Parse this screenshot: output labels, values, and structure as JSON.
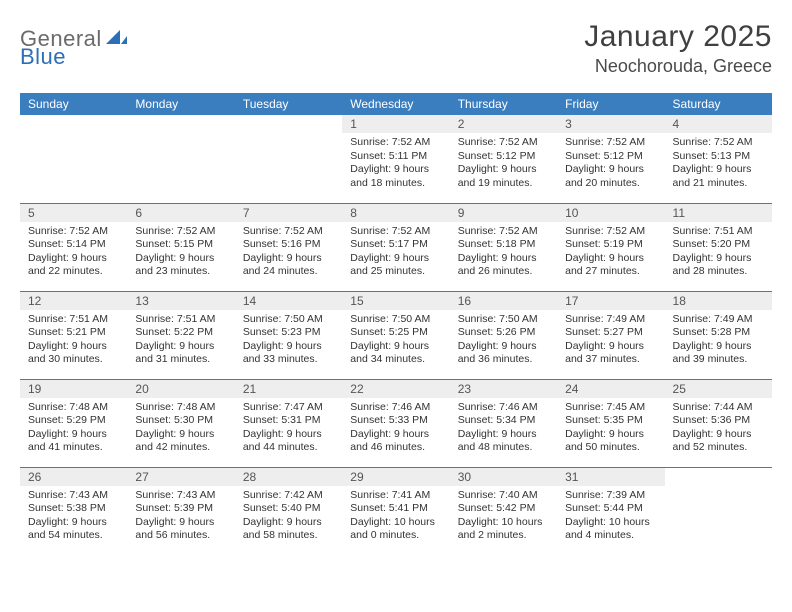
{
  "brand": {
    "part1": "General",
    "part2": "Blue"
  },
  "title": "January 2025",
  "location": "Neochorouda, Greece",
  "colors": {
    "header_bg": "#3a7ebf",
    "header_fg": "#ffffff",
    "daynum_bg": "#eeeeee",
    "rule": "#3a7ebf",
    "brand_gray": "#6a6a6a",
    "brand_blue": "#2d6fb6"
  },
  "day_headers": [
    "Sunday",
    "Monday",
    "Tuesday",
    "Wednesday",
    "Thursday",
    "Friday",
    "Saturday"
  ],
  "weeks": [
    [
      {
        "n": "",
        "sr": "",
        "ss": "",
        "dl": ""
      },
      {
        "n": "",
        "sr": "",
        "ss": "",
        "dl": ""
      },
      {
        "n": "",
        "sr": "",
        "ss": "",
        "dl": ""
      },
      {
        "n": "1",
        "sr": "7:52 AM",
        "ss": "5:11 PM",
        "dl": "9 hours and 18 minutes."
      },
      {
        "n": "2",
        "sr": "7:52 AM",
        "ss": "5:12 PM",
        "dl": "9 hours and 19 minutes."
      },
      {
        "n": "3",
        "sr": "7:52 AM",
        "ss": "5:12 PM",
        "dl": "9 hours and 20 minutes."
      },
      {
        "n": "4",
        "sr": "7:52 AM",
        "ss": "5:13 PM",
        "dl": "9 hours and 21 minutes."
      }
    ],
    [
      {
        "n": "5",
        "sr": "7:52 AM",
        "ss": "5:14 PM",
        "dl": "9 hours and 22 minutes."
      },
      {
        "n": "6",
        "sr": "7:52 AM",
        "ss": "5:15 PM",
        "dl": "9 hours and 23 minutes."
      },
      {
        "n": "7",
        "sr": "7:52 AM",
        "ss": "5:16 PM",
        "dl": "9 hours and 24 minutes."
      },
      {
        "n": "8",
        "sr": "7:52 AM",
        "ss": "5:17 PM",
        "dl": "9 hours and 25 minutes."
      },
      {
        "n": "9",
        "sr": "7:52 AM",
        "ss": "5:18 PM",
        "dl": "9 hours and 26 minutes."
      },
      {
        "n": "10",
        "sr": "7:52 AM",
        "ss": "5:19 PM",
        "dl": "9 hours and 27 minutes."
      },
      {
        "n": "11",
        "sr": "7:51 AM",
        "ss": "5:20 PM",
        "dl": "9 hours and 28 minutes."
      }
    ],
    [
      {
        "n": "12",
        "sr": "7:51 AM",
        "ss": "5:21 PM",
        "dl": "9 hours and 30 minutes."
      },
      {
        "n": "13",
        "sr": "7:51 AM",
        "ss": "5:22 PM",
        "dl": "9 hours and 31 minutes."
      },
      {
        "n": "14",
        "sr": "7:50 AM",
        "ss": "5:23 PM",
        "dl": "9 hours and 33 minutes."
      },
      {
        "n": "15",
        "sr": "7:50 AM",
        "ss": "5:25 PM",
        "dl": "9 hours and 34 minutes."
      },
      {
        "n": "16",
        "sr": "7:50 AM",
        "ss": "5:26 PM",
        "dl": "9 hours and 36 minutes."
      },
      {
        "n": "17",
        "sr": "7:49 AM",
        "ss": "5:27 PM",
        "dl": "9 hours and 37 minutes."
      },
      {
        "n": "18",
        "sr": "7:49 AM",
        "ss": "5:28 PM",
        "dl": "9 hours and 39 minutes."
      }
    ],
    [
      {
        "n": "19",
        "sr": "7:48 AM",
        "ss": "5:29 PM",
        "dl": "9 hours and 41 minutes."
      },
      {
        "n": "20",
        "sr": "7:48 AM",
        "ss": "5:30 PM",
        "dl": "9 hours and 42 minutes."
      },
      {
        "n": "21",
        "sr": "7:47 AM",
        "ss": "5:31 PM",
        "dl": "9 hours and 44 minutes."
      },
      {
        "n": "22",
        "sr": "7:46 AM",
        "ss": "5:33 PM",
        "dl": "9 hours and 46 minutes."
      },
      {
        "n": "23",
        "sr": "7:46 AM",
        "ss": "5:34 PM",
        "dl": "9 hours and 48 minutes."
      },
      {
        "n": "24",
        "sr": "7:45 AM",
        "ss": "5:35 PM",
        "dl": "9 hours and 50 minutes."
      },
      {
        "n": "25",
        "sr": "7:44 AM",
        "ss": "5:36 PM",
        "dl": "9 hours and 52 minutes."
      }
    ],
    [
      {
        "n": "26",
        "sr": "7:43 AM",
        "ss": "5:38 PM",
        "dl": "9 hours and 54 minutes."
      },
      {
        "n": "27",
        "sr": "7:43 AM",
        "ss": "5:39 PM",
        "dl": "9 hours and 56 minutes."
      },
      {
        "n": "28",
        "sr": "7:42 AM",
        "ss": "5:40 PM",
        "dl": "9 hours and 58 minutes."
      },
      {
        "n": "29",
        "sr": "7:41 AM",
        "ss": "5:41 PM",
        "dl": "10 hours and 0 minutes."
      },
      {
        "n": "30",
        "sr": "7:40 AM",
        "ss": "5:42 PM",
        "dl": "10 hours and 2 minutes."
      },
      {
        "n": "31",
        "sr": "7:39 AM",
        "ss": "5:44 PM",
        "dl": "10 hours and 4 minutes."
      },
      {
        "n": "",
        "sr": "",
        "ss": "",
        "dl": ""
      }
    ]
  ],
  "labels": {
    "sunrise": "Sunrise:",
    "sunset": "Sunset:",
    "daylight": "Daylight:"
  }
}
